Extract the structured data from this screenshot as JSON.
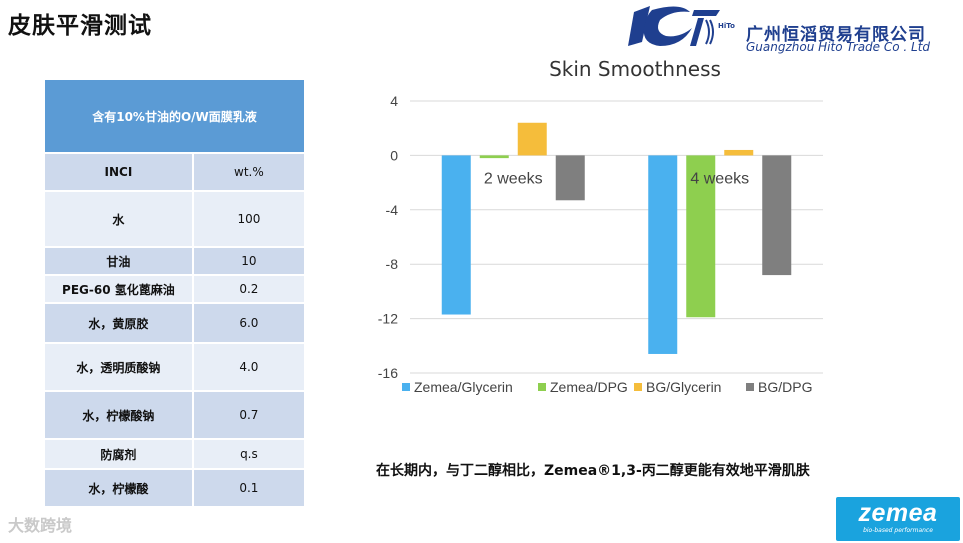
{
  "page": {
    "title": "皮肤平滑测试",
    "conclusion": "在长期内，与丁二醇相比，Zemea®1,3-丙二醇更能有效地平滑肌肤"
  },
  "logo": {
    "mark_text": "HiTo",
    "name_cn": "广州恒滔贸易有限公司",
    "name_en": "Guangzhou Hito Trade Co . Ltd"
  },
  "table": {
    "title": "含有10%甘油的O/W面膜乳液",
    "header": [
      "INCI",
      "wt.%"
    ],
    "rows": [
      {
        "inci": "水",
        "wt": "100"
      },
      {
        "inci": "甘油",
        "wt": "10"
      },
      {
        "inci": "PEG-60 氢化蓖麻油",
        "wt": "0.2"
      },
      {
        "inci": "水，黄原胶",
        "wt": "6.0"
      },
      {
        "inci": "水，透明质酸钠",
        "wt": "4.0"
      },
      {
        "inci": "水，柠檬酸钠",
        "wt": "0.7"
      },
      {
        "inci": "防腐剂",
        "wt": "q.s"
      },
      {
        "inci": "水，柠檬酸",
        "wt": "0.1"
      }
    ]
  },
  "chart_data": {
    "type": "bar",
    "title": "Skin Smoothness",
    "categories": [
      "2 weeks",
      "4 weeks"
    ],
    "series": [
      {
        "name": "Zemea/Glycerin",
        "color": "#4ab1ef",
        "values": [
          -11.7,
          -14.6
        ]
      },
      {
        "name": "Zemea/DPG",
        "color": "#8ecf4f",
        "values": [
          -0.2,
          -11.9
        ]
      },
      {
        "name": "BG/Glycerin",
        "color": "#f5bd3b",
        "values": [
          2.4,
          0.4
        ]
      },
      {
        "name": "BG/DPG",
        "color": "#7f7f7f",
        "values": [
          -3.3,
          -8.8
        ]
      }
    ],
    "yticks": [
      4,
      0,
      -4,
      -8,
      -12,
      -16
    ],
    "ylim": [
      -16,
      4
    ],
    "grid": true,
    "legend_position": "bottom"
  },
  "badge": {
    "word": "zemea",
    "tagline": "bio-based performance"
  },
  "watermark": "大数跨境"
}
